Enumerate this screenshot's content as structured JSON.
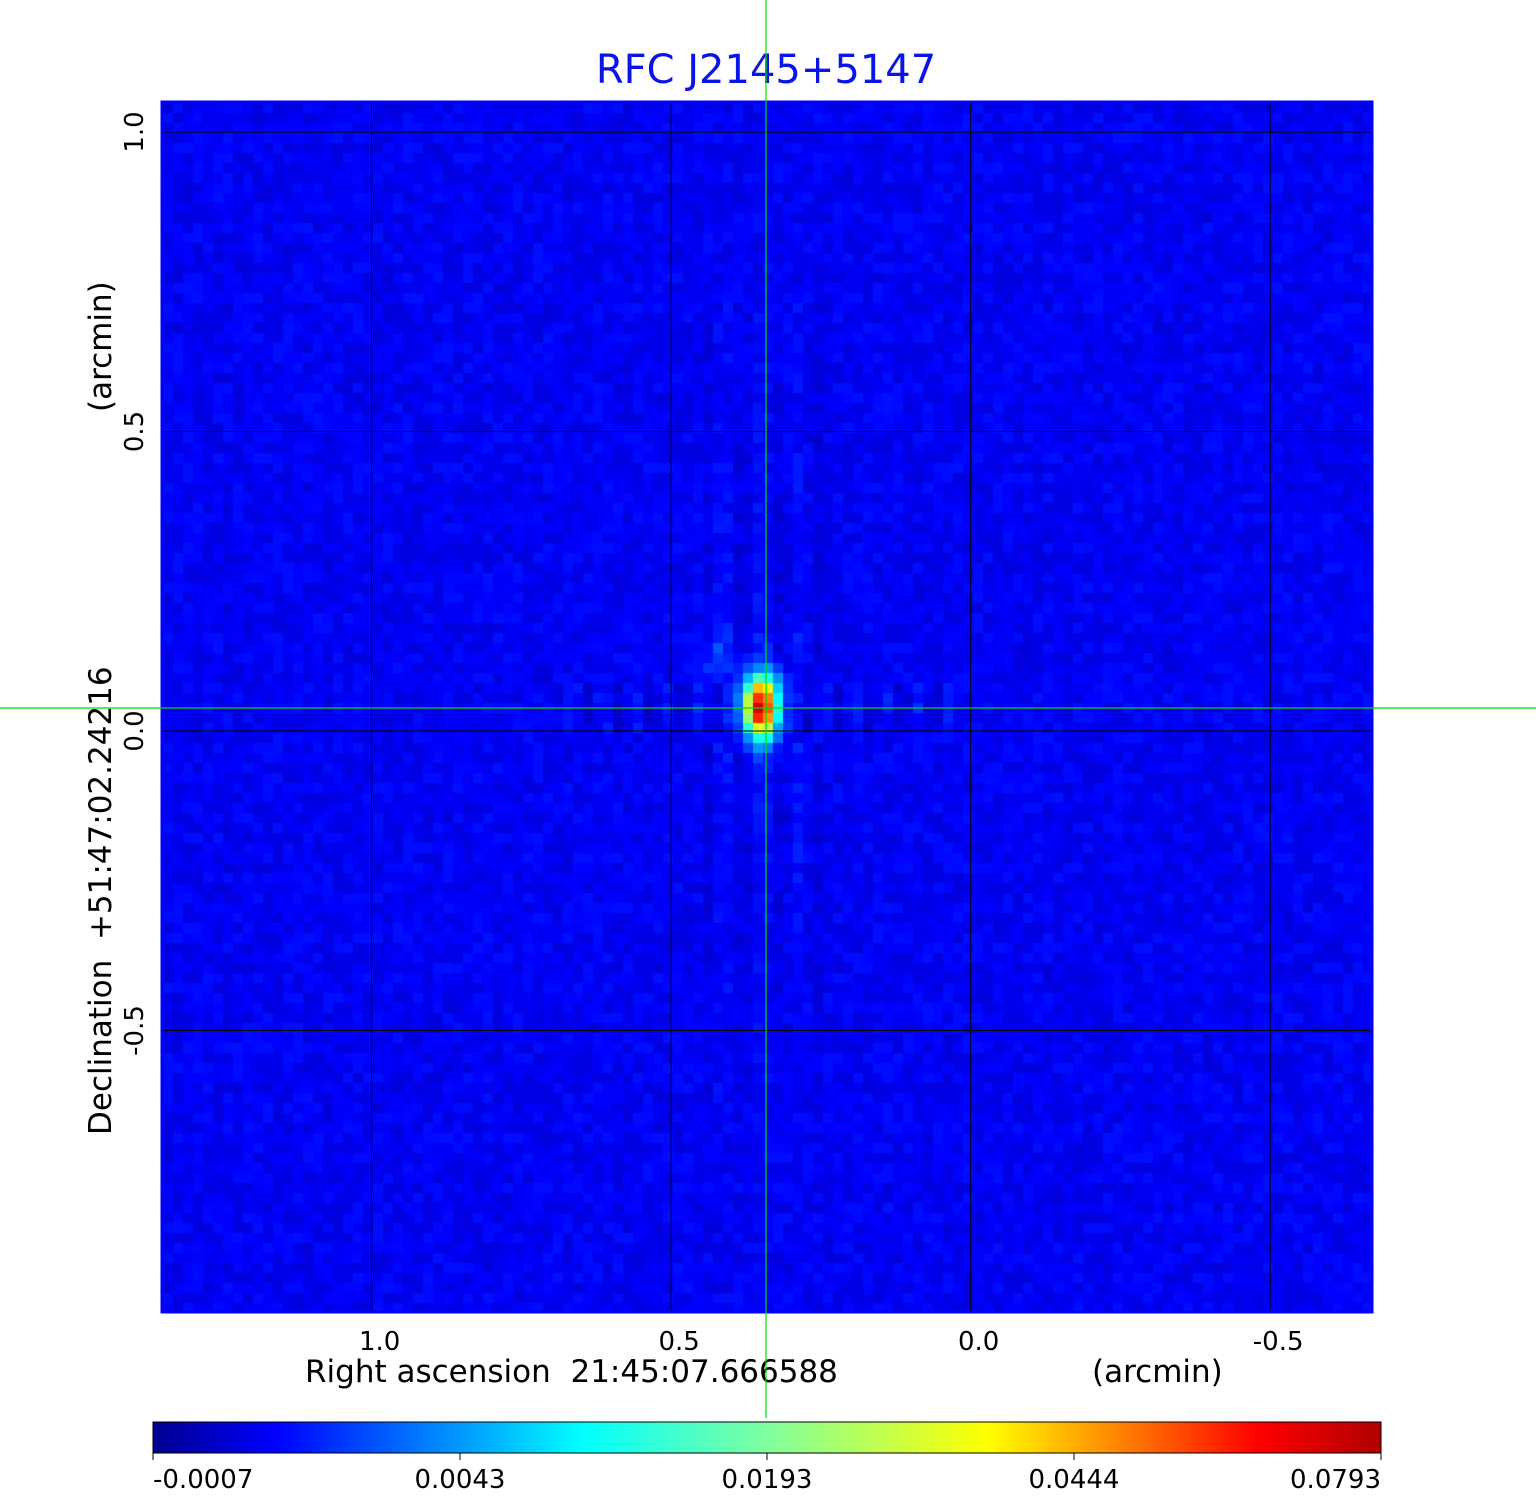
{
  "chart_data": {
    "type": "heatmap",
    "title": "RFC J2145+5147",
    "xlabel": "Right ascension  21:45:07.666588",
    "xunit": "(arcmin)",
    "ylabel": "Declination  +51:47:02.24216",
    "yunit": "(arcmin)",
    "xlim": [
      1.35,
      -0.67
    ],
    "ylim": [
      -0.97,
      1.05
    ],
    "xticks": [
      {
        "value": 1.0,
        "label": "1.0"
      },
      {
        "value": 0.5,
        "label": "0.5"
      },
      {
        "value": 0.0,
        "label": "0.0"
      },
      {
        "value": -0.5,
        "label": "-0.5"
      }
    ],
    "yticks": [
      {
        "value": 1.0,
        "label": "1.0"
      },
      {
        "value": 0.5,
        "label": "0.5"
      },
      {
        "value": 0.0,
        "label": "0.0"
      },
      {
        "value": -0.5,
        "label": "-0.5"
      }
    ],
    "grid": true,
    "colormap": "jet",
    "colorbar": {
      "placement": "bottom",
      "ticks": [
        "-0.0007",
        "0.0043",
        "0.0193",
        "0.0444",
        "0.0793"
      ],
      "range": [
        -0.0007,
        0.0793
      ]
    },
    "crosshair": {
      "x": 0.35,
      "y": 0.04,
      "color": "#00dd00"
    },
    "source": {
      "x": 0.35,
      "y": 0.04,
      "peak": 0.0793
    },
    "colors": {
      "title": "#0a14e6",
      "frame": "#0000ff",
      "background_sky": "#0a3cf0",
      "grid": "#000000"
    }
  }
}
